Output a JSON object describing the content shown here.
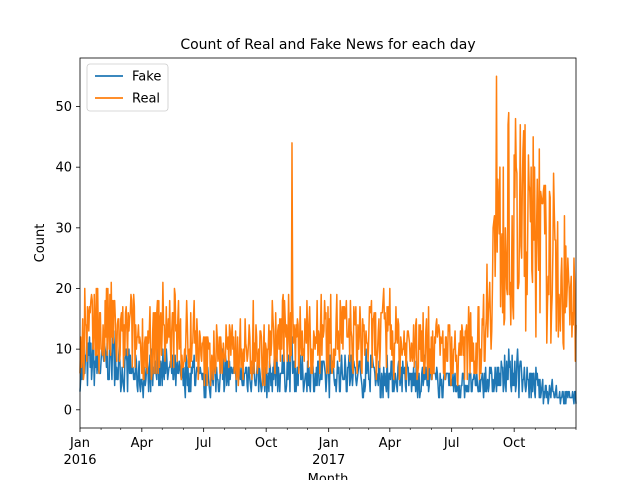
{
  "chart_data": {
    "type": "line",
    "title": "Count of Real and Fake News for each day",
    "xlabel": "Month",
    "ylabel": "Count",
    "x_range": [
      "2016-01-01",
      "2017-12-31"
    ],
    "ylim": [
      -3,
      58
    ],
    "grid": false,
    "legend_position": "upper-left",
    "x_ticks": [
      {
        "date": "2016-01-01",
        "label": "Jan",
        "sublabel": "2016"
      },
      {
        "date": "2016-04-01",
        "label": "Apr",
        "sublabel": ""
      },
      {
        "date": "2016-07-01",
        "label": "Jul",
        "sublabel": ""
      },
      {
        "date": "2016-10-01",
        "label": "Oct",
        "sublabel": ""
      },
      {
        "date": "2017-01-01",
        "label": "Jan",
        "sublabel": "2017"
      },
      {
        "date": "2017-04-01",
        "label": "Apr",
        "sublabel": ""
      },
      {
        "date": "2017-07-01",
        "label": "Jul",
        "sublabel": ""
      },
      {
        "date": "2017-10-01",
        "label": "Oct",
        "sublabel": ""
      }
    ],
    "y_ticks": [
      0,
      10,
      20,
      30,
      40,
      50
    ],
    "series": [
      {
        "name": "Fake",
        "color": "#1f77b4",
        "points": [
          [
            "2016-01-01",
            6
          ],
          [
            "2016-01-15",
            8
          ],
          [
            "2016-02-01",
            7
          ],
          [
            "2016-02-15",
            9
          ],
          [
            "2016-03-01",
            6
          ],
          [
            "2016-03-15",
            7
          ],
          [
            "2016-04-01",
            5
          ],
          [
            "2016-04-15",
            6
          ],
          [
            "2016-05-01",
            7
          ],
          [
            "2016-05-15",
            6
          ],
          [
            "2016-06-01",
            5
          ],
          [
            "2016-06-15",
            6
          ],
          [
            "2016-07-01",
            4
          ],
          [
            "2016-07-15",
            5
          ],
          [
            "2016-08-01",
            6
          ],
          [
            "2016-08-15",
            5
          ],
          [
            "2016-09-01",
            6
          ],
          [
            "2016-09-15",
            6
          ],
          [
            "2016-10-01",
            5
          ],
          [
            "2016-10-15",
            6
          ],
          [
            "2016-11-01",
            7
          ],
          [
            "2016-11-15",
            6
          ],
          [
            "2016-12-01",
            6
          ],
          [
            "2016-12-15",
            6
          ],
          [
            "2017-01-01",
            5
          ],
          [
            "2017-01-15",
            6
          ],
          [
            "2017-02-01",
            6
          ],
          [
            "2017-02-15",
            5
          ],
          [
            "2017-03-01",
            6
          ],
          [
            "2017-03-15",
            5
          ],
          [
            "2017-04-01",
            5
          ],
          [
            "2017-04-15",
            6
          ],
          [
            "2017-05-01",
            5
          ],
          [
            "2017-05-15",
            5
          ],
          [
            "2017-06-01",
            5
          ],
          [
            "2017-06-15",
            4
          ],
          [
            "2017-07-01",
            4
          ],
          [
            "2017-07-15",
            4
          ],
          [
            "2017-08-01",
            4
          ],
          [
            "2017-08-15",
            4
          ],
          [
            "2017-09-01",
            5
          ],
          [
            "2017-09-15",
            5
          ],
          [
            "2017-10-01",
            6
          ],
          [
            "2017-10-15",
            5
          ],
          [
            "2017-11-01",
            4
          ],
          [
            "2017-11-15",
            3
          ],
          [
            "2017-12-01",
            3
          ],
          [
            "2017-12-15",
            2
          ],
          [
            "2017-12-31",
            2
          ]
        ]
      },
      {
        "name": "Real",
        "color": "#ff7f0e",
        "points": [
          [
            "2016-01-01",
            10
          ],
          [
            "2016-01-15",
            13
          ],
          [
            "2016-02-01",
            12
          ],
          [
            "2016-02-15",
            14
          ],
          [
            "2016-03-01",
            11
          ],
          [
            "2016-03-15",
            13
          ],
          [
            "2016-04-01",
            11
          ],
          [
            "2016-04-15",
            10
          ],
          [
            "2016-05-01",
            14
          ],
          [
            "2016-05-15",
            12
          ],
          [
            "2016-06-01",
            10
          ],
          [
            "2016-06-15",
            11
          ],
          [
            "2016-07-01",
            8
          ],
          [
            "2016-07-15",
            9
          ],
          [
            "2016-08-01",
            10
          ],
          [
            "2016-08-15",
            9
          ],
          [
            "2016-09-01",
            10
          ],
          [
            "2016-09-15",
            10
          ],
          [
            "2016-10-01",
            9
          ],
          [
            "2016-10-15",
            11
          ],
          [
            "2016-11-01",
            13
          ],
          [
            "2016-11-15",
            11
          ],
          [
            "2016-12-01",
            11
          ],
          [
            "2016-12-15",
            12
          ],
          [
            "2017-01-01",
            12
          ],
          [
            "2017-01-15",
            13
          ],
          [
            "2017-02-01",
            12
          ],
          [
            "2017-02-15",
            11
          ],
          [
            "2017-03-01",
            12
          ],
          [
            "2017-03-15",
            11
          ],
          [
            "2017-04-01",
            12
          ],
          [
            "2017-04-15",
            11
          ],
          [
            "2017-05-01",
            10
          ],
          [
            "2017-05-15",
            10
          ],
          [
            "2017-06-01",
            11
          ],
          [
            "2017-06-15",
            10
          ],
          [
            "2017-07-01",
            9
          ],
          [
            "2017-07-15",
            9
          ],
          [
            "2017-08-01",
            10
          ],
          [
            "2017-08-15",
            12
          ],
          [
            "2017-09-01",
            26
          ],
          [
            "2017-09-15",
            28
          ],
          [
            "2017-10-01",
            27
          ],
          [
            "2017-10-15",
            28
          ],
          [
            "2017-11-01",
            26
          ],
          [
            "2017-11-15",
            25
          ],
          [
            "2017-12-01",
            22
          ],
          [
            "2017-12-15",
            18
          ],
          [
            "2017-12-31",
            15
          ]
        ],
        "peaks": [
          [
            "2016-11-08",
            44
          ],
          [
            "2017-09-05",
            55
          ],
          [
            "2017-10-03",
            48
          ],
          [
            "2017-10-10",
            47
          ],
          [
            "2017-10-17",
            47
          ],
          [
            "2017-11-07",
            43
          ]
        ]
      }
    ]
  }
}
